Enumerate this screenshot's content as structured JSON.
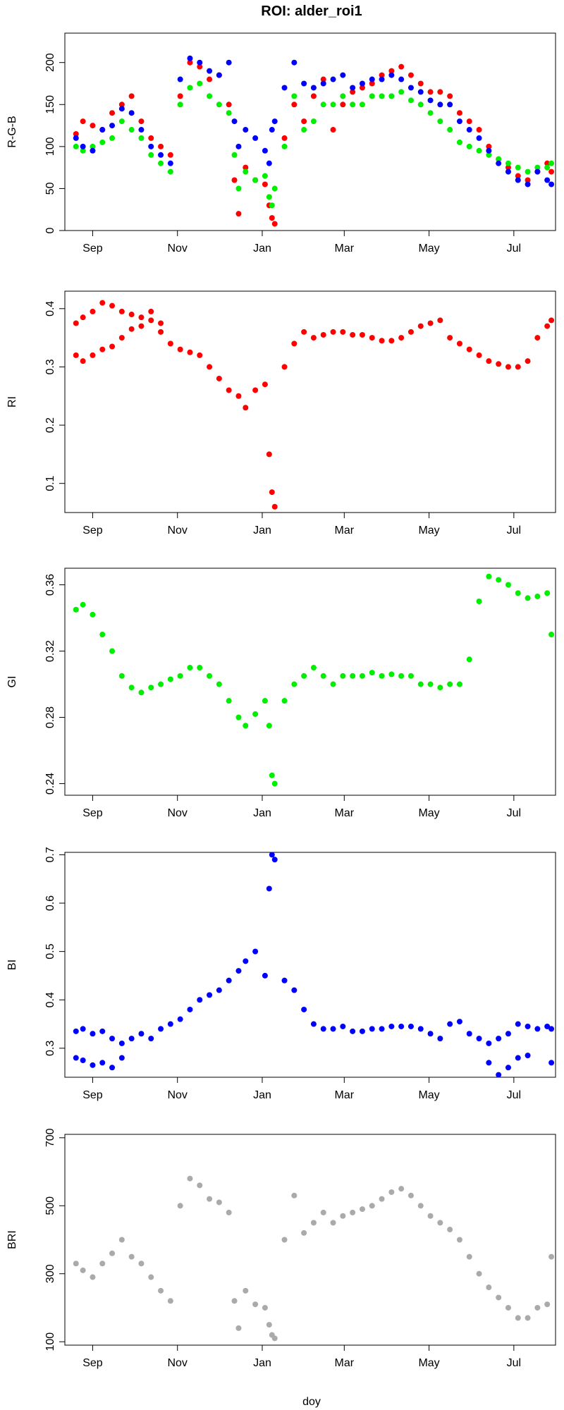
{
  "title": "ROI: alder_roi1",
  "xlabel": "doy",
  "x_ticks": [
    "Sep",
    "Nov",
    "Jan",
    "Mar",
    "May",
    "Jul"
  ],
  "chart_data": [
    {
      "type": "scatter",
      "ylabel": "R-G-B",
      "ylim": [
        0,
        235
      ],
      "yticks": [
        0,
        50,
        100,
        150,
        200
      ],
      "x_domain_months": [
        "Aug",
        "Jul"
      ],
      "series": [
        {
          "color": "#ff0000",
          "x": [
            "Aug 20",
            "Aug 25",
            "Sep 1",
            "Sep 8",
            "Sep 15",
            "Sep 22",
            "Sep 29",
            "Oct 6",
            "Oct 13",
            "Oct 20",
            "Oct 27",
            "Nov 3",
            "Nov 10",
            "Nov 17",
            "Nov 24",
            "Dec 1",
            "Dec 8",
            "Dec 12",
            "Dec 15",
            "Dec 20",
            "Dec 27",
            "Jan 3",
            "Jan 6",
            "Jan 8",
            "Jan 10",
            "Jan 17",
            "Jan 24",
            "Jan 31",
            "Feb 7",
            "Feb 14",
            "Feb 21",
            "Feb 28",
            "Mar 7",
            "Mar 14",
            "Mar 21",
            "Mar 28",
            "Apr 4",
            "Apr 11",
            "Apr 18",
            "Apr 25",
            "May 2",
            "May 9",
            "May 16",
            "May 23",
            "May 30",
            "Jun 6",
            "Jun 13",
            "Jun 20",
            "Jun 27",
            "Jul 4",
            "Jul 11",
            "Jul 18",
            "Jul 25",
            "Jul 28"
          ],
          "y": [
            115,
            130,
            125,
            120,
            140,
            150,
            160,
            130,
            110,
            100,
            90,
            160,
            200,
            195,
            180,
            185,
            150,
            60,
            20,
            75,
            60,
            55,
            30,
            15,
            8,
            110,
            150,
            130,
            160,
            180,
            120,
            150,
            165,
            170,
            175,
            185,
            190,
            195,
            185,
            175,
            165,
            165,
            160,
            140,
            130,
            120,
            100,
            85,
            75,
            65,
            60,
            70,
            80,
            70
          ]
        },
        {
          "color": "#00ee00",
          "x": [
            "Aug 20",
            "Aug 25",
            "Sep 1",
            "Sep 8",
            "Sep 15",
            "Sep 22",
            "Sep 29",
            "Oct 6",
            "Oct 13",
            "Oct 20",
            "Oct 27",
            "Nov 3",
            "Nov 10",
            "Nov 17",
            "Nov 24",
            "Dec 1",
            "Dec 8",
            "Dec 12",
            "Dec 15",
            "Dec 20",
            "Dec 27",
            "Jan 3",
            "Jan 6",
            "Jan 8",
            "Jan 10",
            "Jan 17",
            "Jan 24",
            "Jan 31",
            "Feb 7",
            "Feb 14",
            "Feb 21",
            "Feb 28",
            "Mar 7",
            "Mar 14",
            "Mar 21",
            "Mar 28",
            "Apr 4",
            "Apr 11",
            "Apr 18",
            "Apr 25",
            "May 2",
            "May 9",
            "May 16",
            "May 23",
            "May 30",
            "Jun 6",
            "Jun 13",
            "Jun 20",
            "Jun 27",
            "Jul 4",
            "Jul 11",
            "Jul 18",
            "Jul 25",
            "Jul 28"
          ],
          "y": [
            100,
            95,
            100,
            105,
            110,
            130,
            120,
            110,
            90,
            80,
            70,
            150,
            170,
            175,
            160,
            150,
            140,
            90,
            50,
            70,
            60,
            65,
            40,
            30,
            50,
            100,
            160,
            120,
            130,
            150,
            150,
            160,
            150,
            150,
            160,
            160,
            160,
            165,
            155,
            150,
            140,
            130,
            120,
            105,
            100,
            95,
            90,
            85,
            80,
            75,
            70,
            75,
            75,
            80
          ]
        },
        {
          "color": "#0000ff",
          "x": [
            "Aug 20",
            "Aug 25",
            "Sep 1",
            "Sep 8",
            "Sep 15",
            "Sep 22",
            "Sep 29",
            "Oct 6",
            "Oct 13",
            "Oct 20",
            "Oct 27",
            "Nov 3",
            "Nov 10",
            "Nov 17",
            "Nov 24",
            "Dec 1",
            "Dec 8",
            "Dec 12",
            "Dec 15",
            "Dec 20",
            "Dec 27",
            "Jan 3",
            "Jan 6",
            "Jan 8",
            "Jan 10",
            "Jan 17",
            "Jan 24",
            "Jan 31",
            "Feb 7",
            "Feb 14",
            "Feb 21",
            "Feb 28",
            "Mar 7",
            "Mar 14",
            "Mar 21",
            "Mar 28",
            "Apr 4",
            "Apr 11",
            "Apr 18",
            "Apr 25",
            "May 2",
            "May 9",
            "May 16",
            "May 23",
            "May 30",
            "Jun 6",
            "Jun 13",
            "Jun 20",
            "Jun 27",
            "Jul 4",
            "Jul 11",
            "Jul 18",
            "Jul 25",
            "Jul 28"
          ],
          "y": [
            110,
            100,
            95,
            120,
            125,
            145,
            140,
            120,
            100,
            90,
            80,
            180,
            205,
            200,
            190,
            185,
            200,
            130,
            100,
            120,
            110,
            95,
            80,
            120,
            130,
            170,
            200,
            175,
            170,
            175,
            180,
            185,
            170,
            175,
            180,
            180,
            185,
            180,
            170,
            165,
            155,
            150,
            150,
            130,
            120,
            110,
            95,
            80,
            70,
            60,
            55,
            70,
            60,
            55
          ]
        }
      ]
    },
    {
      "type": "scatter",
      "ylabel": "RI",
      "ylim": [
        0.05,
        0.43
      ],
      "yticks": [
        0.1,
        0.2,
        0.3,
        0.4
      ],
      "series": [
        {
          "color": "#ff0000",
          "x": [
            "Aug 20",
            "Aug 25",
            "Sep 1",
            "Sep 8",
            "Sep 15",
            "Sep 22",
            "Sep 29",
            "Oct 6",
            "Oct 13",
            "Oct 20",
            "Oct 27",
            "Nov 3",
            "Nov 10",
            "Nov 17",
            "Nov 24",
            "Dec 1",
            "Dec 8",
            "Dec 15",
            "Dec 20",
            "Dec 27",
            "Jan 3",
            "Jan 6",
            "Jan 8",
            "Jan 10",
            "Jan 17",
            "Jan 24",
            "Jan 31",
            "Feb 7",
            "Feb 14",
            "Feb 21",
            "Feb 28",
            "Mar 7",
            "Mar 14",
            "Mar 21",
            "Mar 28",
            "Apr 4",
            "Apr 11",
            "Apr 18",
            "Apr 25",
            "May 2",
            "May 9",
            "May 16",
            "May 23",
            "May 30",
            "Jun 6",
            "Jun 13",
            "Jun 20",
            "Jun 27",
            "Jul 4",
            "Jul 11",
            "Jul 18",
            "Jul 25",
            "Jul 28"
          ],
          "y": [
            0.375,
            0.385,
            0.395,
            0.41,
            0.405,
            0.395,
            0.39,
            0.385,
            0.395,
            0.36,
            0.34,
            0.33,
            0.325,
            0.32,
            0.3,
            0.28,
            0.26,
            0.25,
            0.23,
            0.26,
            0.27,
            0.15,
            0.085,
            0.06,
            0.3,
            0.34,
            0.36,
            0.35,
            0.355,
            0.36,
            0.36,
            0.355,
            0.355,
            0.35,
            0.345,
            0.345,
            0.35,
            0.36,
            0.37,
            0.375,
            0.38,
            0.35,
            0.34,
            0.33,
            0.32,
            0.31,
            0.305,
            0.3,
            0.3,
            0.31,
            0.35,
            0.37,
            0.38
          ]
        },
        {
          "color": "#ff0000",
          "x": [
            "Aug 20",
            "Aug 25",
            "Sep 1",
            "Sep 8",
            "Sep 15",
            "Sep 22",
            "Sep 29",
            "Oct 6",
            "Oct 13",
            "Oct 20"
          ],
          "y": [
            0.32,
            0.31,
            0.32,
            0.33,
            0.335,
            0.35,
            0.365,
            0.37,
            0.38,
            0.375
          ]
        }
      ]
    },
    {
      "type": "scatter",
      "ylabel": "GI",
      "ylim": [
        0.233,
        0.37
      ],
      "yticks": [
        0.24,
        0.28,
        0.32,
        0.36
      ],
      "series": [
        {
          "color": "#00ee00",
          "x": [
            "Aug 20",
            "Aug 25",
            "Sep 1",
            "Sep 8",
            "Sep 15",
            "Sep 22",
            "Sep 29",
            "Oct 6",
            "Oct 13",
            "Oct 20",
            "Oct 27",
            "Nov 3",
            "Nov 10",
            "Nov 17",
            "Nov 24",
            "Dec 1",
            "Dec 8",
            "Dec 15",
            "Dec 20",
            "Dec 27",
            "Jan 3",
            "Jan 6",
            "Jan 8",
            "Jan 10",
            "Jan 17",
            "Jan 24",
            "Jan 31",
            "Feb 7",
            "Feb 14",
            "Feb 21",
            "Feb 28",
            "Mar 7",
            "Mar 14",
            "Mar 21",
            "Mar 28",
            "Apr 4",
            "Apr 11",
            "Apr 18",
            "Apr 25",
            "May 2",
            "May 9",
            "May 16",
            "May 23",
            "May 30",
            "Jun 6",
            "Jun 13",
            "Jun 20",
            "Jun 27",
            "Jul 4",
            "Jul 11",
            "Jul 18",
            "Jul 25",
            "Jul 28"
          ],
          "y": [
            0.345,
            0.348,
            0.342,
            0.33,
            0.32,
            0.305,
            0.298,
            0.295,
            0.298,
            0.3,
            0.303,
            0.305,
            0.31,
            0.31,
            0.305,
            0.3,
            0.29,
            0.28,
            0.275,
            0.282,
            0.29,
            0.275,
            0.245,
            0.24,
            0.29,
            0.3,
            0.305,
            0.31,
            0.305,
            0.3,
            0.305,
            0.305,
            0.305,
            0.307,
            0.305,
            0.306,
            0.305,
            0.305,
            0.3,
            0.3,
            0.298,
            0.3,
            0.3,
            0.315,
            0.35,
            0.365,
            0.363,
            0.36,
            0.355,
            0.352,
            0.353,
            0.355,
            0.33
          ]
        }
      ]
    },
    {
      "type": "scatter",
      "ylabel": "BI",
      "ylim": [
        0.24,
        0.705
      ],
      "yticks": [
        0.3,
        0.4,
        0.5,
        0.6,
        0.7
      ],
      "series": [
        {
          "color": "#0000ff",
          "x": [
            "Aug 20",
            "Aug 25",
            "Sep 1",
            "Sep 8",
            "Sep 15",
            "Sep 22",
            "Sep 29",
            "Oct 6",
            "Oct 13",
            "Oct 20",
            "Oct 27",
            "Nov 3",
            "Nov 10",
            "Nov 17",
            "Nov 24",
            "Dec 1",
            "Dec 8",
            "Dec 15",
            "Dec 20",
            "Dec 27",
            "Jan 3",
            "Jan 6",
            "Jan 8",
            "Jan 10",
            "Jan 17",
            "Jan 24",
            "Jan 31",
            "Feb 7",
            "Feb 14",
            "Feb 21",
            "Feb 28",
            "Mar 7",
            "Mar 14",
            "Mar 21",
            "Mar 28",
            "Apr 4",
            "Apr 11",
            "Apr 18",
            "Apr 25",
            "May 2",
            "May 9",
            "May 16",
            "May 23",
            "May 30",
            "Jun 6",
            "Jun 13",
            "Jun 20",
            "Jun 27",
            "Jul 4",
            "Jul 11",
            "Jul 18",
            "Jul 25",
            "Jul 28"
          ],
          "y": [
            0.335,
            0.34,
            0.33,
            0.335,
            0.32,
            0.31,
            0.32,
            0.33,
            0.32,
            0.34,
            0.35,
            0.36,
            0.38,
            0.4,
            0.41,
            0.42,
            0.44,
            0.46,
            0.48,
            0.5,
            0.45,
            0.63,
            0.7,
            0.69,
            0.44,
            0.42,
            0.38,
            0.35,
            0.34,
            0.34,
            0.345,
            0.335,
            0.335,
            0.34,
            0.34,
            0.345,
            0.345,
            0.345,
            0.34,
            0.33,
            0.32,
            0.35,
            0.355,
            0.33,
            0.32,
            0.31,
            0.32,
            0.33,
            0.35,
            0.345,
            0.34,
            0.345,
            0.34
          ]
        },
        {
          "color": "#0000ff",
          "x": [
            "Aug 20",
            "Aug 25",
            "Sep 1",
            "Sep 8",
            "Sep 15",
            "Sep 22",
            "Jun 13",
            "Jun 20",
            "Jun 27",
            "Jul 4",
            "Jul 11",
            "Jul 28"
          ],
          "y": [
            0.28,
            0.275,
            0.265,
            0.27,
            0.26,
            0.28,
            0.27,
            0.245,
            0.26,
            0.28,
            0.285,
            0.27
          ]
        }
      ]
    },
    {
      "type": "scatter",
      "ylabel": "BRI",
      "ylim": [
        90,
        710
      ],
      "yticks": [
        100,
        300,
        500,
        700
      ],
      "series": [
        {
          "color": "#aaaaaa",
          "x": [
            "Aug 20",
            "Aug 25",
            "Sep 1",
            "Sep 8",
            "Sep 15",
            "Sep 22",
            "Sep 29",
            "Oct 6",
            "Oct 13",
            "Oct 20",
            "Oct 27",
            "Nov 3",
            "Nov 10",
            "Nov 17",
            "Nov 24",
            "Dec 1",
            "Dec 8",
            "Dec 12",
            "Dec 15",
            "Dec 20",
            "Dec 27",
            "Jan 3",
            "Jan 6",
            "Jan 8",
            "Jan 10",
            "Jan 17",
            "Jan 24",
            "Jan 31",
            "Feb 7",
            "Feb 14",
            "Feb 21",
            "Feb 28",
            "Mar 7",
            "Mar 14",
            "Mar 21",
            "Mar 28",
            "Apr 4",
            "Apr 11",
            "Apr 18",
            "Apr 25",
            "May 2",
            "May 9",
            "May 16",
            "May 23",
            "May 30",
            "Jun 6",
            "Jun 13",
            "Jun 20",
            "Jun 27",
            "Jul 4",
            "Jul 11",
            "Jul 18",
            "Jul 25",
            "Jul 28"
          ],
          "y": [
            330,
            310,
            290,
            330,
            360,
            400,
            350,
            330,
            290,
            250,
            220,
            500,
            580,
            560,
            520,
            510,
            480,
            220,
            140,
            250,
            210,
            200,
            150,
            120,
            110,
            400,
            530,
            420,
            450,
            480,
            450,
            470,
            480,
            490,
            500,
            520,
            540,
            550,
            530,
            500,
            470,
            450,
            430,
            400,
            350,
            300,
            260,
            230,
            200,
            170,
            170,
            200,
            210,
            350
          ]
        }
      ]
    }
  ]
}
